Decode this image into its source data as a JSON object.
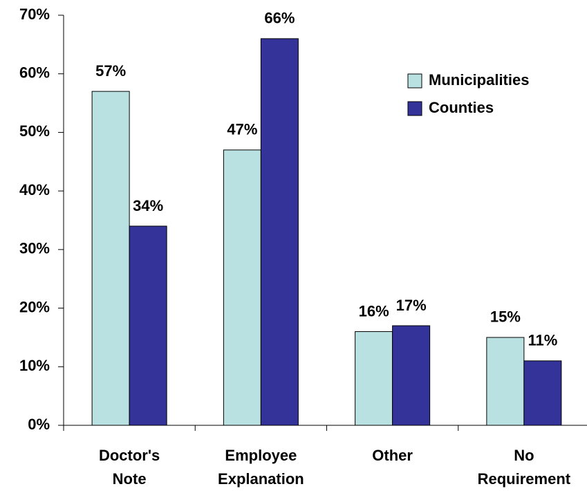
{
  "chart_data": {
    "type": "bar",
    "categories": [
      "Doctor's Note",
      "Employee Explanation",
      "Other",
      "No Requirement"
    ],
    "series": [
      {
        "name": "Municipalities",
        "color": "#b9e1e1",
        "values": [
          57,
          47,
          16,
          15
        ],
        "value_labels": [
          "57%",
          "47%",
          "16%",
          "15%"
        ]
      },
      {
        "name": "Counties",
        "color": "#333399",
        "values": [
          34,
          66,
          17,
          11
        ],
        "value_labels": [
          "34%",
          "66%",
          "17%",
          "11%"
        ]
      }
    ],
    "ylim": [
      0,
      70
    ],
    "yticks": [
      {
        "value": 0,
        "label": "0%"
      },
      {
        "value": 10,
        "label": "10%"
      },
      {
        "value": 20,
        "label": "20%"
      },
      {
        "value": 30,
        "label": "30%"
      },
      {
        "value": 40,
        "label": "40%"
      },
      {
        "value": 50,
        "label": "50%"
      },
      {
        "value": 60,
        "label": "60%"
      },
      {
        "value": 70,
        "label": "70%"
      }
    ],
    "legend": "upper right"
  }
}
